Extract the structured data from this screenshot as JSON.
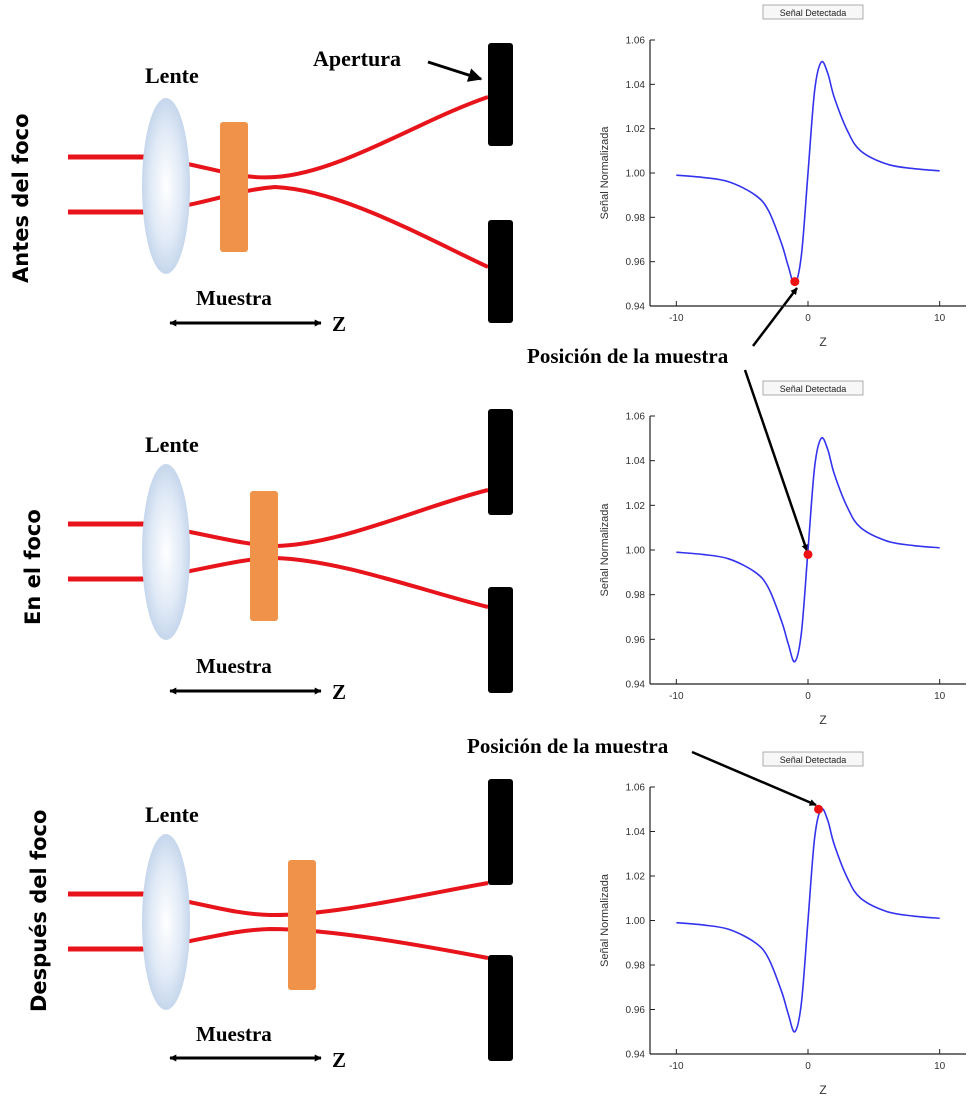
{
  "labels": {
    "lens": "Lente",
    "sample": "Muestra",
    "z_axis": "Z",
    "aperture": "Apertura",
    "sample_position": "Posición de la muestra"
  },
  "rows": [
    {
      "title": "Antes del foco"
    },
    {
      "title": "En el  foco"
    },
    {
      "title": "Después  del foco"
    }
  ],
  "colors": {
    "beam": "#e8141b",
    "lens": "#bcd0ea",
    "sample": "#f0924a",
    "aperture": "#000000",
    "curve": "#3333ee",
    "marker": "#ee1111"
  },
  "chart_data": [
    {
      "type": "line",
      "title": "Señal Detectada",
      "xlabel": "Z",
      "ylabel": "Señal Normalizada",
      "xlim": [
        -12,
        12
      ],
      "ylim": [
        0.94,
        1.06
      ],
      "xticks": [
        "-10",
        "0",
        "10"
      ],
      "yticks": [
        "0.94",
        "0.96",
        "0.98",
        "1.00",
        "1.02",
        "1.04",
        "1.06"
      ],
      "series": [
        {
          "x": [
            -10,
            -8,
            -6,
            -4,
            -3,
            -2,
            -1.5,
            -1,
            -0.5,
            0,
            0.5,
            1,
            1.5,
            2,
            3,
            4,
            6,
            8,
            10
          ],
          "y": [
            0.999,
            0.998,
            0.996,
            0.99,
            0.983,
            0.968,
            0.958,
            0.95,
            0.963,
            1.0,
            1.037,
            1.05,
            1.045,
            1.034,
            1.019,
            1.01,
            1.004,
            1.002,
            1.001
          ]
        }
      ],
      "marker": {
        "x": -1,
        "y": 0.951
      }
    },
    {
      "type": "line",
      "title": "Señal Detectada",
      "xlabel": "Z",
      "ylabel": "Señal Normalizada",
      "xlim": [
        -12,
        12
      ],
      "ylim": [
        0.94,
        1.06
      ],
      "xticks": [
        "-10",
        "0",
        "10"
      ],
      "yticks": [
        "0.94",
        "0.96",
        "0.98",
        "1.00",
        "1.02",
        "1.04",
        "1.06"
      ],
      "series": [
        {
          "x": [
            -10,
            -8,
            -6,
            -4,
            -3,
            -2,
            -1.5,
            -1,
            -0.5,
            0,
            0.5,
            1,
            1.5,
            2,
            3,
            4,
            6,
            8,
            10
          ],
          "y": [
            0.999,
            0.998,
            0.996,
            0.99,
            0.983,
            0.968,
            0.958,
            0.95,
            0.963,
            1.0,
            1.037,
            1.05,
            1.045,
            1.034,
            1.019,
            1.01,
            1.004,
            1.002,
            1.001
          ]
        }
      ],
      "marker": {
        "x": 0,
        "y": 0.998
      }
    },
    {
      "type": "line",
      "title": "Señal Detectada",
      "xlabel": "Z",
      "ylabel": "Señal Normalizada",
      "xlim": [
        -12,
        12
      ],
      "ylim": [
        0.94,
        1.06
      ],
      "xticks": [
        "-10",
        "0",
        "10"
      ],
      "yticks": [
        "0.94",
        "0.96",
        "0.98",
        "1.00",
        "1.02",
        "1.04",
        "1.06"
      ],
      "series": [
        {
          "x": [
            -10,
            -8,
            -6,
            -4,
            -3,
            -2,
            -1.5,
            -1,
            -0.5,
            0,
            0.5,
            1,
            1.5,
            2,
            3,
            4,
            6,
            8,
            10
          ],
          "y": [
            0.999,
            0.998,
            0.996,
            0.99,
            0.983,
            0.968,
            0.958,
            0.95,
            0.963,
            1.0,
            1.037,
            1.05,
            1.045,
            1.034,
            1.019,
            1.01,
            1.004,
            1.002,
            1.001
          ]
        }
      ],
      "marker": {
        "x": 0.8,
        "y": 1.05
      }
    }
  ]
}
